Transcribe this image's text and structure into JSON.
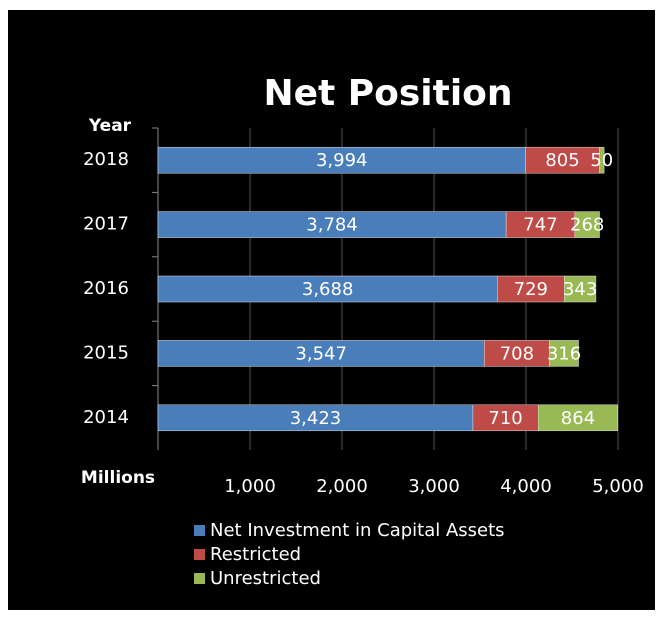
{
  "chart_data": {
    "type": "stacked_barh",
    "title": "Net Position",
    "y_label": "Year",
    "x_label": "Millions",
    "categories": [
      "2018",
      "2017",
      "2016",
      "2015",
      "2014"
    ],
    "series": [
      {
        "name": "Net Investment in Capital Assets",
        "color": "#4a7ebb",
        "values": [
          3994,
          3784,
          3688,
          3547,
          3423
        ],
        "value_labels": [
          "3,994",
          "3,784",
          "3,688",
          "3,547",
          "3,423"
        ]
      },
      {
        "name": "Restricted",
        "color": "#be4b48",
        "values": [
          805,
          747,
          729,
          708,
          710
        ]
      },
      {
        "name": "Unrestricted",
        "color": "#98b954",
        "values": [
          50,
          268,
          343,
          316,
          864
        ]
      }
    ],
    "xlim": [
      0,
      5000
    ],
    "xticks": [
      {
        "value": 1000,
        "label": "1,000"
      },
      {
        "value": 2000,
        "label": "2,000"
      },
      {
        "value": 3000,
        "label": "3,000"
      },
      {
        "value": 4000,
        "label": "4,000"
      },
      {
        "value": 5000,
        "label": "5,000"
      }
    ],
    "grid": true
  }
}
